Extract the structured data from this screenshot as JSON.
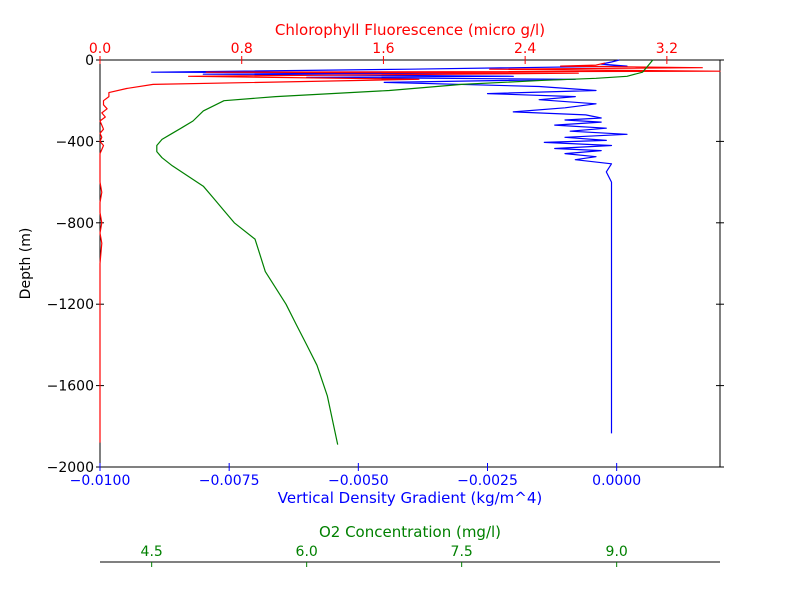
{
  "chart_data": {
    "type": "line",
    "y_axis": {
      "label": "Depth (m)",
      "range": [
        -2000,
        0
      ],
      "ticks": [
        0,
        -400,
        -800,
        -1200,
        -1600,
        -2000
      ],
      "tick_labels": [
        "0",
        "−400",
        "−800",
        "−1200",
        "−1600",
        "−2000"
      ]
    },
    "x_axes": [
      {
        "id": "density",
        "label": "Vertical Density Gradient (kg/m^4)",
        "position": "bottom",
        "color": "#0000ff",
        "range": [
          -0.01,
          0.002
        ],
        "ticks": [
          -0.01,
          -0.0075,
          -0.005,
          -0.0025,
          0.0
        ],
        "tick_labels": [
          "−0.0100",
          "−0.0075",
          "−0.0050",
          "−0.0025",
          "0.0000"
        ]
      },
      {
        "id": "chlorophyll",
        "label": "Chlorophyll Fluorescence (micro g/l)",
        "position": "top",
        "color": "#ff0000",
        "range": [
          0.0,
          3.5
        ],
        "ticks": [
          0.0,
          0.8,
          1.6,
          2.4,
          3.2
        ],
        "tick_labels": [
          "0.0",
          "0.8",
          "1.6",
          "2.4",
          "3.2"
        ]
      },
      {
        "id": "oxygen",
        "label": "O2 Concentration (mg/l)",
        "position": "bottom-offset",
        "color": "#008000",
        "range": [
          4.0,
          10.0
        ],
        "ticks": [
          4.5,
          6.0,
          7.5,
          9.0
        ],
        "tick_labels": [
          "4.5",
          "6.0",
          "7.5",
          "9.0"
        ]
      }
    ],
    "series": [
      {
        "axis": "density",
        "color": "#0000ff",
        "x": [
          5e-05,
          -0.0001,
          -0.0003,
          0.0002,
          -0.004,
          -0.009,
          -0.003,
          -0.008,
          -0.002,
          -0.006,
          -0.0008,
          -0.0045,
          -0.0015,
          -0.0004,
          -0.0025,
          -0.0008,
          -0.0015,
          -0.0004,
          -0.001,
          -0.002,
          -0.0006,
          -0.0003,
          -0.001,
          -0.0003,
          -0.0012,
          -0.0002,
          -0.0009,
          0.0002,
          -0.001,
          -0.0002,
          -0.0014,
          -0.0001,
          -0.0012,
          -0.0003,
          -0.001,
          -0.0004,
          -0.0008,
          -0.0001,
          -0.0002,
          -0.0001,
          -0.0001,
          -0.0001,
          -0.0001,
          -0.0001,
          -0.0001,
          -0.0001,
          -0.0001,
          -0.0001,
          -0.0001,
          -0.0001,
          -0.0001,
          -0.0001,
          -0.0001,
          -0.0001,
          -0.0001
        ],
        "y": [
          0,
          -10,
          -20,
          -30,
          -45,
          -60,
          -65,
          -70,
          -80,
          -85,
          -95,
          -110,
          -130,
          -150,
          -165,
          -180,
          -195,
          -215,
          -235,
          -255,
          -270,
          -285,
          -295,
          -305,
          -320,
          -335,
          -350,
          -365,
          -380,
          -395,
          -405,
          -420,
          -435,
          -445,
          -460,
          -475,
          -490,
          -510,
          -550,
          -600,
          -650,
          -700,
          -750,
          -800,
          -850,
          -880,
          -920,
          -960,
          -1000,
          -1100,
          -1200,
          -1400,
          -1600,
          -1700,
          -1835
        ]
      },
      {
        "axis": "chlorophyll",
        "color": "#ff0000",
        "x": [
          2.85,
          2.8,
          2.6,
          3.4,
          2.2,
          3.5,
          0.6,
          2.7,
          0.5,
          1.8,
          0.3,
          0.15,
          0.05,
          0.05,
          0.02,
          0.02,
          0.04,
          0.01,
          0.03,
          0.0,
          0.01,
          0.02,
          0.0,
          0.01,
          0.0,
          0.02,
          0.01,
          0.0,
          0.0,
          0.0,
          0.0,
          0.01,
          0.0,
          0.0,
          0.01,
          0.0,
          0.01,
          0.0,
          0.0,
          0.0,
          0.0,
          0.0,
          0.0
        ],
        "y": [
          -15,
          -25,
          -30,
          -38,
          -45,
          -55,
          -60,
          -65,
          -80,
          -95,
          -120,
          -140,
          -160,
          -180,
          -200,
          -220,
          -240,
          -260,
          -280,
          -300,
          -320,
          -340,
          -360,
          -380,
          -400,
          -420,
          -440,
          -460,
          -500,
          -550,
          -600,
          -650,
          -700,
          -750,
          -800,
          -850,
          -900,
          -1000,
          -1200,
          -1400,
          -1600,
          -1800,
          -1880
        ]
      },
      {
        "axis": "oxygen",
        "color": "#008000",
        "x": [
          9.35,
          9.3,
          9.25,
          9.1,
          8.8,
          8.3,
          7.5,
          6.8,
          5.7,
          5.2,
          5.0,
          4.9,
          4.8,
          4.7,
          4.6,
          4.55,
          4.55,
          4.6,
          4.7,
          4.85,
          5.0,
          5.1,
          5.2,
          5.3,
          5.5,
          5.55,
          5.6,
          5.7,
          5.8,
          5.9,
          6.0,
          6.1,
          6.2,
          6.3
        ],
        "y": [
          0,
          -30,
          -60,
          -80,
          -90,
          -100,
          -120,
          -150,
          -180,
          -200,
          -250,
          -300,
          -330,
          -360,
          -390,
          -420,
          -450,
          -480,
          -520,
          -570,
          -620,
          -680,
          -740,
          -800,
          -880,
          -960,
          -1040,
          -1120,
          -1200,
          -1300,
          -1400,
          -1500,
          -1650,
          -1890
        ]
      }
    ]
  }
}
